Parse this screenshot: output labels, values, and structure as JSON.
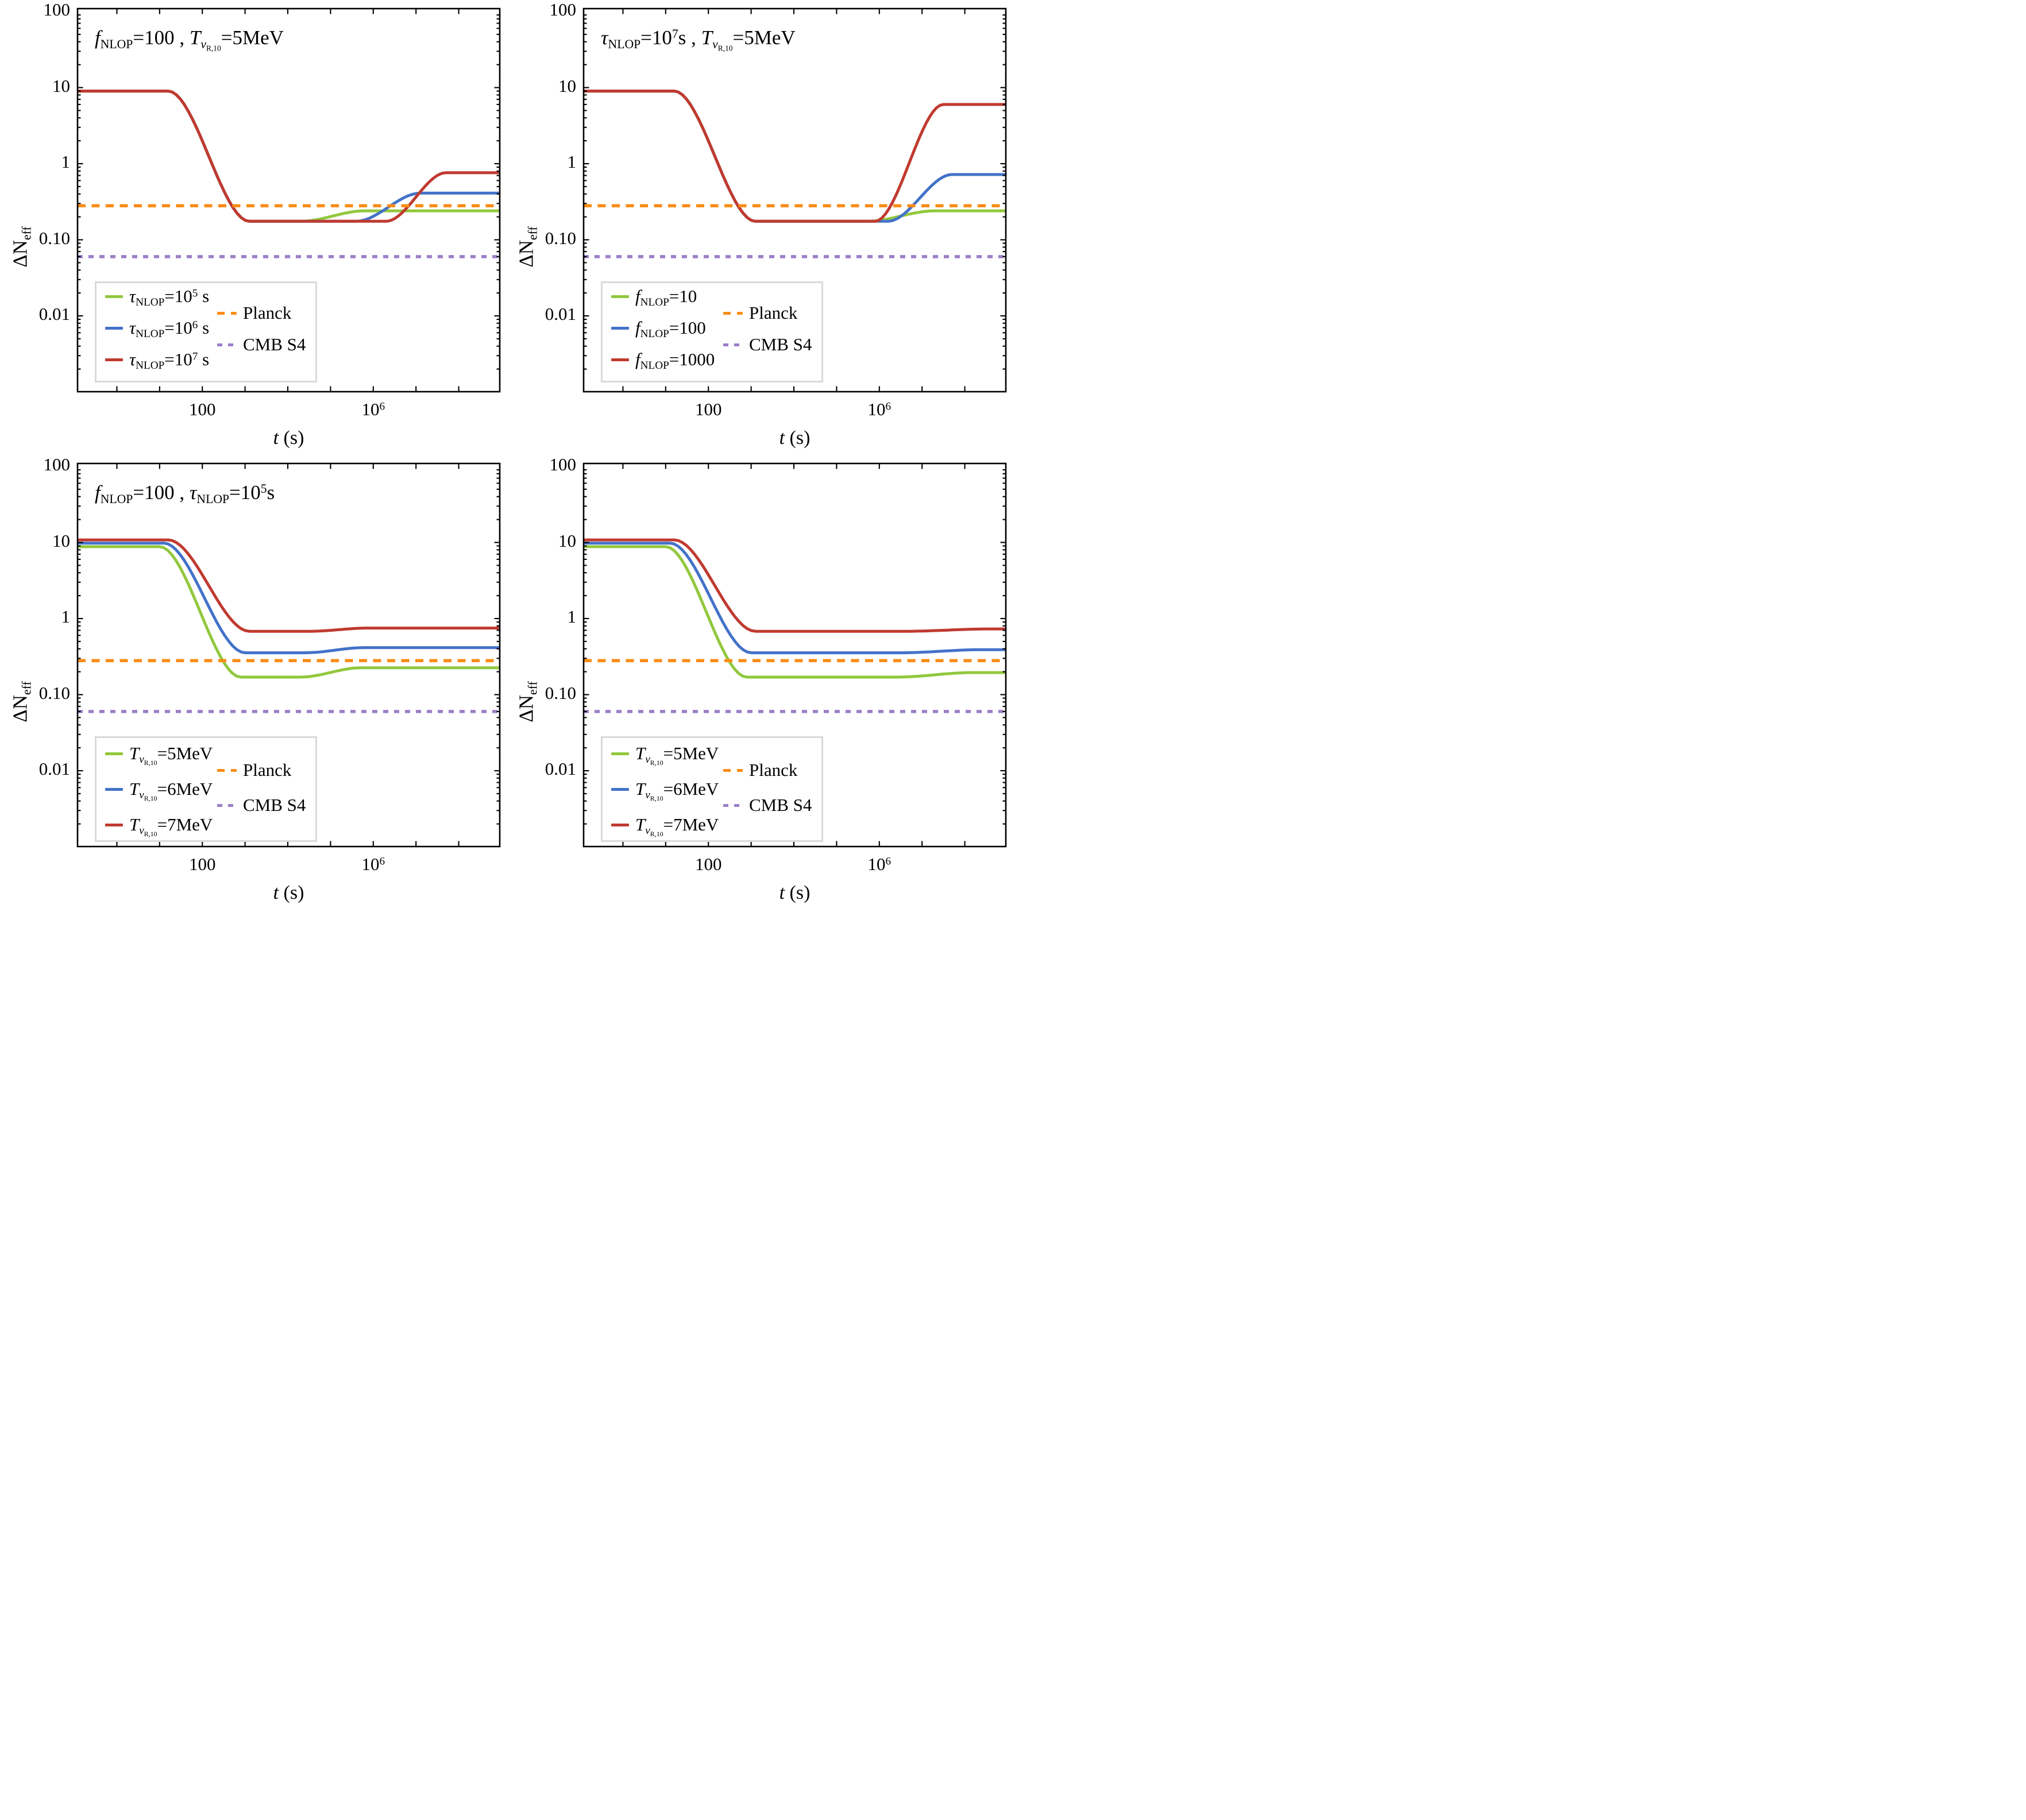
{
  "figure": {
    "background": "#ffffff",
    "frame_color": "#000000",
    "legend_border_color": "#d9d9d9"
  },
  "palette": {
    "green": "#92C83E",
    "blue": "#4372C9",
    "red": "#C03A30",
    "orange": "#FA8C16",
    "purple": "#9B7EC8"
  },
  "axes": {
    "x_scale": "log",
    "y_scale": "log",
    "x_label": "*t* (s)",
    "y_label": "ΔN_{eff}",
    "x_range_log10": [
      -0.92,
      8.96
    ],
    "y_range_log10": [
      -3.0,
      2.04
    ],
    "x_ticks": [
      {
        "value_log10": 2,
        "label": "100"
      },
      {
        "value_log10": 6,
        "label": "10^{6}"
      }
    ],
    "y_ticks": [
      {
        "value_log10": 2,
        "label": "100"
      },
      {
        "value_log10": 1,
        "label": "10"
      },
      {
        "value_log10": 0,
        "label": "1"
      },
      {
        "value_log10": -1,
        "label": "0.10"
      },
      {
        "value_log10": -2,
        "label": "0.01"
      }
    ]
  },
  "reference_lines": [
    {
      "name": "planck",
      "label": "Planck",
      "value": 0.28,
      "color": "#FA8C16",
      "dash": "14 10.5",
      "css_dash": "repeating-linear-gradient(90deg,#FA8C16 0 13px,transparent 13px 24px)"
    },
    {
      "name": "cmb-s4",
      "label": "CMB S4",
      "value": 0.06,
      "color": "#9B7EC8",
      "dash": "9 10",
      "css_dash": "repeating-linear-gradient(90deg,#9B7EC8 0 9px,transparent 9px 19px)"
    }
  ],
  "chart_data": [
    {
      "id": "top-left",
      "type": "line",
      "title": "*f*_{NLOP}=100 , *T*_{*ν*_{R,10}}=5MeV",
      "series": [
        {
          "name": "tau-1e5",
          "label": "*τ*_{NLOP}=10^{5} s",
          "color": "#92C83E",
          "points": [
            [
              -0.92,
              9.0
            ],
            [
              1.2,
              9.0
            ],
            [
              3.1,
              0.175
            ],
            [
              4.3,
              0.175
            ],
            [
              5.8,
              0.24
            ],
            [
              8.96,
              0.24
            ]
          ]
        },
        {
          "name": "tau-1e6",
          "label": "*τ*_{NLOP}=10^{6} s",
          "color": "#4372C9",
          "points": [
            [
              -0.92,
              9.0
            ],
            [
              1.2,
              9.0
            ],
            [
              3.1,
              0.175
            ],
            [
              5.6,
              0.175
            ],
            [
              7.1,
              0.41
            ],
            [
              8.96,
              0.41
            ]
          ]
        },
        {
          "name": "tau-1e7",
          "label": "*τ*_{NLOP}=10^{7} s",
          "color": "#C03A30",
          "points": [
            [
              -0.92,
              9.0
            ],
            [
              1.2,
              9.0
            ],
            [
              3.1,
              0.175
            ],
            [
              6.3,
              0.175
            ],
            [
              7.7,
              0.76
            ],
            [
              8.96,
              0.76
            ]
          ]
        }
      ]
    },
    {
      "id": "top-right",
      "type": "line",
      "title": "*τ*_{NLOP}=10^{7}s , *T*_{*ν*_{R,10}}=5MeV",
      "series": [
        {
          "name": "f-10",
          "label": "*f*_{NLOP}=10",
          "color": "#92C83E",
          "points": [
            [
              -0.92,
              9.0
            ],
            [
              1.2,
              9.0
            ],
            [
              3.1,
              0.175
            ],
            [
              5.7,
              0.175
            ],
            [
              7.3,
              0.24
            ],
            [
              8.96,
              0.24
            ]
          ]
        },
        {
          "name": "f-100",
          "label": "*f*_{NLOP}=100",
          "color": "#4372C9",
          "points": [
            [
              -0.92,
              9.0
            ],
            [
              1.2,
              9.0
            ],
            [
              3.1,
              0.175
            ],
            [
              6.2,
              0.175
            ],
            [
              7.7,
              0.72
            ],
            [
              8.96,
              0.72
            ]
          ]
        },
        {
          "name": "f-1000",
          "label": "*f*_{NLOP}=1000",
          "color": "#C03A30",
          "points": [
            [
              -0.92,
              9.0
            ],
            [
              1.2,
              9.0
            ],
            [
              3.1,
              0.175
            ],
            [
              5.9,
              0.175
            ],
            [
              7.5,
              6.0
            ],
            [
              8.96,
              6.0
            ]
          ]
        }
      ]
    },
    {
      "id": "bottom-left",
      "type": "line",
      "title": "*f*_{NLOP}=100 , *τ*_{NLOP}=10^{5}s",
      "series": [
        {
          "name": "T-5MeV",
          "label": "*T*_{*ν*_{R,10}}=5MeV",
          "color": "#92C83E",
          "points": [
            [
              -0.92,
              8.8
            ],
            [
              1.0,
              8.8
            ],
            [
              2.9,
              0.17
            ],
            [
              4.3,
              0.17
            ],
            [
              5.7,
              0.225
            ],
            [
              8.96,
              0.225
            ]
          ]
        },
        {
          "name": "T-6MeV",
          "label": "*T*_{*ν*_{R,10}}=6MeV",
          "color": "#4372C9",
          "points": [
            [
              -0.92,
              9.8
            ],
            [
              1.1,
              9.8
            ],
            [
              3.0,
              0.355
            ],
            [
              4.4,
              0.355
            ],
            [
              5.8,
              0.415
            ],
            [
              8.96,
              0.415
            ]
          ]
        },
        {
          "name": "T-7MeV",
          "label": "*T*_{*ν*_{R,10}}=7MeV",
          "color": "#C03A30",
          "points": [
            [
              -0.92,
              10.8
            ],
            [
              1.2,
              10.8
            ],
            [
              3.1,
              0.68
            ],
            [
              4.5,
              0.68
            ],
            [
              5.9,
              0.75
            ],
            [
              8.96,
              0.75
            ]
          ]
        }
      ]
    },
    {
      "id": "bottom-right",
      "type": "line",
      "title": "",
      "series": [
        {
          "name": "T-5MeV",
          "label": "*T*_{*ν*_{R,10}}=5MeV",
          "color": "#92C83E",
          "points": [
            [
              -0.92,
              8.8
            ],
            [
              1.0,
              8.8
            ],
            [
              2.9,
              0.17
            ],
            [
              6.4,
              0.17
            ],
            [
              8.2,
              0.195
            ],
            [
              8.96,
              0.195
            ]
          ]
        },
        {
          "name": "T-6MeV",
          "label": "*T*_{*ν*_{R,10}}=6MeV",
          "color": "#4372C9",
          "points": [
            [
              -0.92,
              9.8
            ],
            [
              1.1,
              9.8
            ],
            [
              3.0,
              0.355
            ],
            [
              6.5,
              0.355
            ],
            [
              8.4,
              0.39
            ],
            [
              8.96,
              0.39
            ]
          ]
        },
        {
          "name": "T-7MeV",
          "label": "*T*_{*ν*_{R,10}}=7MeV",
          "color": "#C03A30",
          "points": [
            [
              -0.92,
              10.8
            ],
            [
              1.2,
              10.8
            ],
            [
              3.1,
              0.68
            ],
            [
              6.6,
              0.68
            ],
            [
              8.6,
              0.73
            ],
            [
              8.96,
              0.73
            ]
          ]
        }
      ]
    }
  ]
}
